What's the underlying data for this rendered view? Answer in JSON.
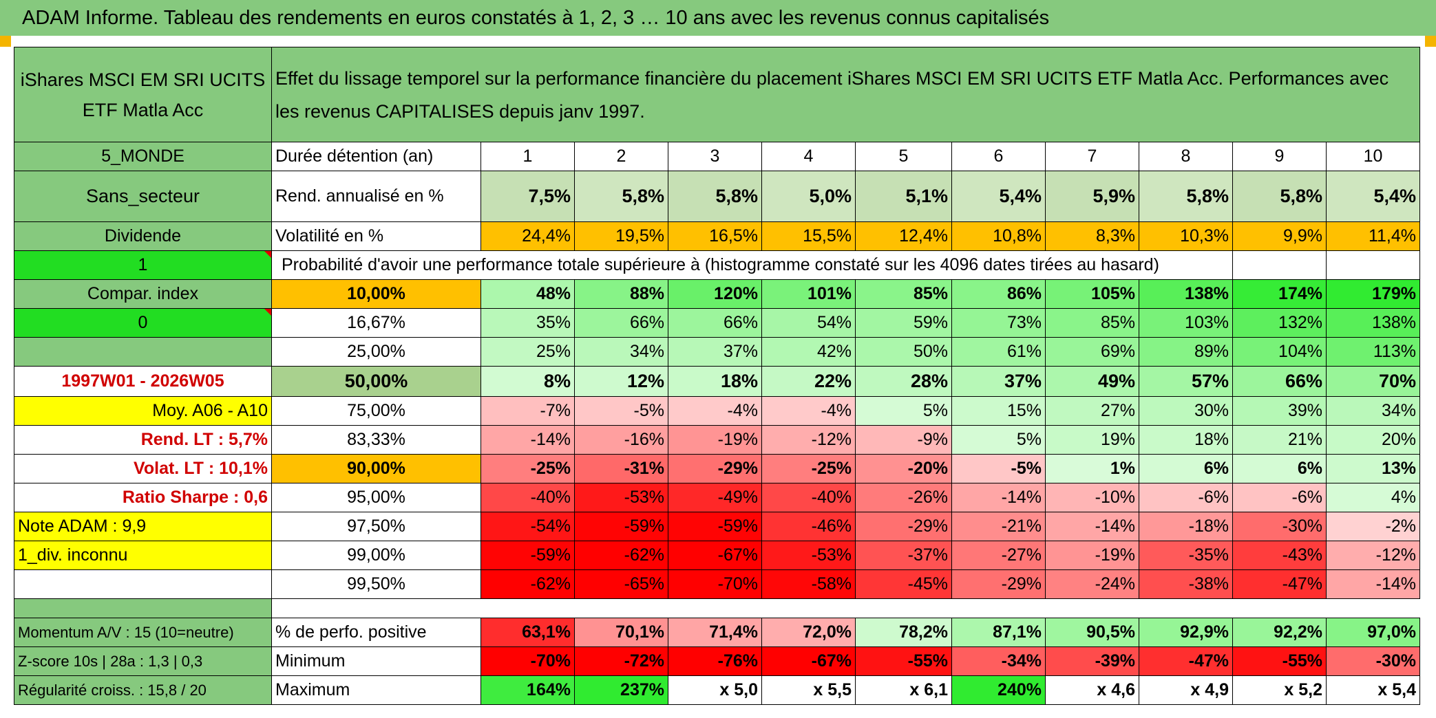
{
  "title": "ADAM Informe. Tableau des rendements en euros constatés à 1, 2, 3 … 10 ans avec les revenus connus capitalisés",
  "fund_name": "iShares MSCI EM SRI UCITS ETF Matla Acc",
  "description": "Effet du lissage temporel sur la performance financière du placement iShares MSCI EM SRI UCITS ETF Matla Acc. Performances avec les revenus CAPITALISES depuis janv 1997.",
  "left": {
    "zone": "5_MONDE",
    "sector": "Sans_secteur",
    "dividend": "Dividende",
    "value_1": "1",
    "compar": "Compar. index",
    "value_0": "0",
    "period": "1997W01 - 2026W05",
    "moy": "Moy. A06 - A10",
    "rend_lt": "Rend. LT :   5,7%",
    "volat_lt": "Volat. LT :   10,1%",
    "sharpe": "Ratio Sharpe :    0,6",
    "note": "Note ADAM : 9,9",
    "div": "1_div. inconnu",
    "momentum": "Momentum A/V : 15 (10=neutre)",
    "zscore": "Z-score 10s | 28a : 1,3 | 0,3",
    "regularite": "Régularité croiss. : 15,8 / 20"
  },
  "labels": {
    "duree": "Durée détention (an)",
    "rend": "Rend. annualisé en %",
    "vol": "Volatilité en %",
    "proba": "Probabilité d'avoir une performance totale supérieure à (histogramme constaté sur les 4096 dates tirées au hasard)",
    "pos": "% de perfo. positive",
    "min": "Minimum",
    "max": "Maximum"
  },
  "years": [
    "1",
    "2",
    "3",
    "4",
    "5",
    "6",
    "7",
    "8",
    "9",
    "10"
  ],
  "rend_values": [
    "7,5%",
    "5,8%",
    "5,8%",
    "5,0%",
    "5,1%",
    "5,4%",
    "5,9%",
    "5,8%",
    "5,8%",
    "5,4%"
  ],
  "vol_values": [
    "24,4%",
    "19,5%",
    "16,5%",
    "15,5%",
    "12,4%",
    "10,8%",
    "8,3%",
    "10,3%",
    "9,9%",
    "11,4%"
  ],
  "prob_rows": [
    {
      "p": "10,00%",
      "v": [
        "48%",
        "88%",
        "120%",
        "101%",
        "85%",
        "86%",
        "105%",
        "138%",
        "174%",
        "179%"
      ]
    },
    {
      "p": "16,67%",
      "v": [
        "35%",
        "66%",
        "66%",
        "54%",
        "59%",
        "73%",
        "85%",
        "103%",
        "132%",
        "138%"
      ]
    },
    {
      "p": "25,00%",
      "v": [
        "25%",
        "34%",
        "37%",
        "42%",
        "50%",
        "61%",
        "69%",
        "89%",
        "104%",
        "113%"
      ]
    },
    {
      "p": "50,00%",
      "v": [
        "8%",
        "12%",
        "18%",
        "22%",
        "28%",
        "37%",
        "49%",
        "57%",
        "66%",
        "70%"
      ]
    },
    {
      "p": "75,00%",
      "v": [
        "-7%",
        "-5%",
        "-4%",
        "-4%",
        "5%",
        "15%",
        "27%",
        "30%",
        "39%",
        "34%"
      ]
    },
    {
      "p": "83,33%",
      "v": [
        "-14%",
        "-16%",
        "-19%",
        "-12%",
        "-9%",
        "5%",
        "19%",
        "18%",
        "21%",
        "20%"
      ]
    },
    {
      "p": "90,00%",
      "v": [
        "-25%",
        "-31%",
        "-29%",
        "-25%",
        "-20%",
        "-5%",
        "1%",
        "6%",
        "6%",
        "13%"
      ]
    },
    {
      "p": "95,00%",
      "v": [
        "-40%",
        "-53%",
        "-49%",
        "-40%",
        "-26%",
        "-14%",
        "-10%",
        "-6%",
        "-6%",
        "4%"
      ]
    },
    {
      "p": "97,50%",
      "v": [
        "-54%",
        "-59%",
        "-59%",
        "-46%",
        "-29%",
        "-21%",
        "-14%",
        "-18%",
        "-30%",
        "-2%"
      ]
    },
    {
      "p": "99,00%",
      "v": [
        "-59%",
        "-62%",
        "-67%",
        "-53%",
        "-37%",
        "-27%",
        "-19%",
        "-35%",
        "-43%",
        "-12%"
      ]
    },
    {
      "p": "99,50%",
      "v": [
        "-62%",
        "-65%",
        "-70%",
        "-58%",
        "-45%",
        "-29%",
        "-24%",
        "-38%",
        "-47%",
        "-14%"
      ]
    }
  ],
  "pos_values": [
    "63,1%",
    "70,1%",
    "71,4%",
    "72,0%",
    "78,2%",
    "87,1%",
    "90,5%",
    "92,9%",
    "92,2%",
    "97,0%"
  ],
  "min_values": [
    "-70%",
    "-72%",
    "-76%",
    "-67%",
    "-55%",
    "-34%",
    "-39%",
    "-47%",
    "-55%",
    "-30%"
  ],
  "max_values": [
    "164%",
    "237%",
    "x 5,0",
    "x 5,5",
    "x 6,1",
    "240%",
    "x 4,6",
    "x 4,9",
    "x 5,2",
    "x 5,4"
  ],
  "colors": {
    "header_green": "#86c97e",
    "bright_green": "#22dd22",
    "yellow": "#ffff00",
    "orange": "#ffc000",
    "red_text": "#d00000"
  }
}
